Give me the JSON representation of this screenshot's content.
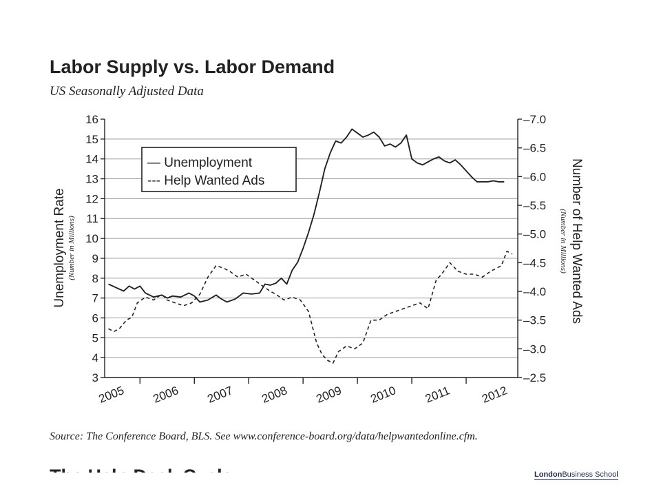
{
  "header": {
    "title": "Labor Supply vs. Labor Demand",
    "subtitle": "US Seasonally Adjusted Data"
  },
  "footer": {
    "source": "Source: The Conference Board, BLS. See www.conference-board.org/data/helpwantedonline.cfm.",
    "next_heading": "The Help Desk Cycle",
    "logo_bold": "London",
    "logo_rest": "Business School"
  },
  "chart_data": {
    "type": "line",
    "title": "Labor Supply vs. Labor Demand",
    "subtitle": "US Seasonally Adjusted Data",
    "x_tick_labels": [
      "2005",
      "2006",
      "2007",
      "2008",
      "2009",
      "2010",
      "2011",
      "2012"
    ],
    "xlim": [
      2004.85,
      2012.45
    ],
    "y_left": {
      "label": "Unemployment Rate",
      "sublabel": "(Number in Millions)",
      "range": [
        3,
        16
      ],
      "ticks": [
        3,
        4,
        5,
        6,
        7,
        8,
        9,
        10,
        11,
        12,
        13,
        14,
        15,
        16
      ]
    },
    "y_right": {
      "label": "Number of Help Wanted Ads",
      "sublabel": "(Number in Millions)",
      "range": [
        2.5,
        7.0
      ],
      "ticks": [
        "2.5",
        "3.0",
        "3.5",
        "4.0",
        "4.5",
        "5.0",
        "5.5",
        "6.0",
        "6.5",
        "7.0"
      ]
    },
    "grid": true,
    "legend": {
      "position": "top-left",
      "entries": [
        "— Unemployment",
        "--- Help Wanted Ads"
      ]
    },
    "series": [
      {
        "name": "Unemployment",
        "axis": "left",
        "style": "solid",
        "x": [
          2004.92,
          2005.08,
          2005.2,
          2005.3,
          2005.4,
          2005.5,
          2005.6,
          2005.75,
          2005.9,
          2006.0,
          2006.1,
          2006.25,
          2006.4,
          2006.5,
          2006.6,
          2006.75,
          2006.9,
          2007.0,
          2007.1,
          2007.25,
          2007.4,
          2007.55,
          2007.7,
          2007.8,
          2007.9,
          2008.0,
          2008.1,
          2008.2,
          2008.3,
          2008.4,
          2008.5,
          2008.6,
          2008.7,
          2008.8,
          2008.9,
          2009.0,
          2009.1,
          2009.2,
          2009.3,
          2009.4,
          2009.5,
          2009.6,
          2009.7,
          2009.8,
          2009.9,
          2010.0,
          2010.1,
          2010.2,
          2010.3,
          2010.4,
          2010.5,
          2010.6,
          2010.7,
          2010.8,
          2010.9,
          2011.0,
          2011.1,
          2011.2,
          2011.3,
          2011.4,
          2011.5,
          2011.6,
          2011.7,
          2011.8,
          2011.9,
          2012.0,
          2012.1,
          2012.2
        ],
        "values": [
          7.7,
          7.5,
          7.35,
          7.6,
          7.45,
          7.6,
          7.25,
          7.05,
          7.15,
          7.0,
          7.1,
          7.05,
          7.25,
          7.1,
          6.8,
          6.9,
          7.15,
          6.95,
          6.8,
          6.95,
          7.25,
          7.2,
          7.25,
          7.7,
          7.65,
          7.75,
          8.0,
          7.7,
          8.4,
          8.8,
          9.5,
          10.3,
          11.2,
          12.3,
          13.5,
          14.3,
          14.9,
          14.8,
          15.1,
          15.5,
          15.3,
          15.1,
          15.2,
          15.35,
          15.1,
          14.65,
          14.75,
          14.6,
          14.8,
          15.2,
          14.0,
          13.8,
          13.7,
          13.85,
          14.0,
          14.1,
          13.9,
          13.8,
          13.95,
          13.7,
          13.4,
          13.1,
          12.85,
          12.85,
          12.85,
          12.9,
          12.85,
          12.85
        ]
      },
      {
        "name": "Help Wanted Ads",
        "axis": "right",
        "style": "dashed",
        "x": [
          2004.92,
          2005.02,
          2005.12,
          2005.25,
          2005.35,
          2005.45,
          2005.6,
          2005.75,
          2005.9,
          2006.0,
          2006.15,
          2006.3,
          2006.45,
          2006.6,
          2006.75,
          2006.9,
          2007.05,
          2007.15,
          2007.3,
          2007.45,
          2007.6,
          2007.75,
          2007.9,
          2008.0,
          2008.15,
          2008.3,
          2008.45,
          2008.6,
          2008.75,
          2008.85,
          2008.95,
          2009.05,
          2009.15,
          2009.3,
          2009.45,
          2009.6,
          2009.75,
          2009.9,
          2010.05,
          2010.2,
          2010.35,
          2010.5,
          2010.65,
          2010.8,
          2010.95,
          2011.05,
          2011.2,
          2011.35,
          2011.5,
          2011.65,
          2011.8,
          2011.95,
          2012.05,
          2012.15,
          2012.25,
          2012.35
        ],
        "values": [
          3.35,
          3.3,
          3.35,
          3.5,
          3.55,
          3.8,
          3.9,
          3.85,
          3.95,
          3.85,
          3.8,
          3.75,
          3.8,
          3.95,
          4.25,
          4.45,
          4.4,
          4.35,
          4.25,
          4.3,
          4.2,
          4.1,
          4.0,
          3.95,
          3.85,
          3.9,
          3.85,
          3.65,
          3.1,
          2.9,
          2.8,
          2.75,
          2.95,
          3.05,
          3.0,
          3.1,
          3.5,
          3.5,
          3.6,
          3.65,
          3.7,
          3.75,
          3.8,
          3.7,
          4.2,
          4.3,
          4.5,
          4.35,
          4.3,
          4.3,
          4.25,
          4.35,
          4.4,
          4.45,
          4.7,
          4.65
        ]
      }
    ],
    "source": "Source: The Conference Board, BLS. See www.conference-board.org/data/helpwantedonline.cfm."
  }
}
